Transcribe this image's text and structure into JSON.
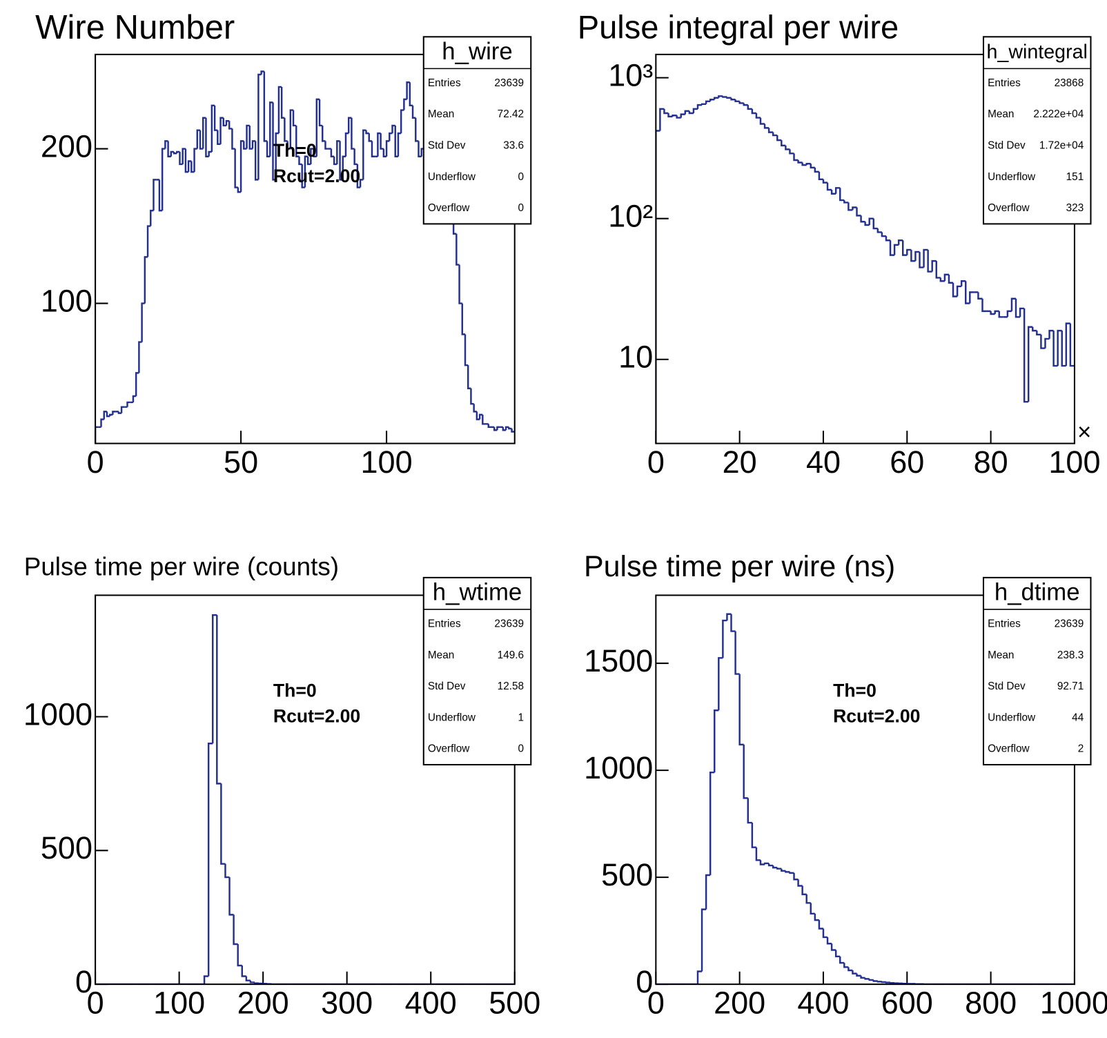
{
  "chart_data": [
    {
      "type": "histogram",
      "title": "Wire Number",
      "color": "#23308f",
      "log_y": false,
      "xlim": [
        0,
        144
      ],
      "ylim": [
        9.4,
        261
      ],
      "xticks": [
        0,
        50,
        100
      ],
      "yticks": [
        100,
        200
      ],
      "bins": [
        0,
        1,
        2,
        3,
        4,
        5,
        6,
        7,
        8,
        9,
        10,
        11,
        12,
        13,
        14,
        15,
        16,
        17,
        18,
        19,
        20,
        21,
        22,
        23,
        24,
        25,
        26,
        27,
        28,
        29,
        30,
        31,
        32,
        33,
        34,
        35,
        36,
        37,
        38,
        39,
        40,
        41,
        42,
        43,
        44,
        45,
        46,
        47,
        48,
        49,
        50,
        51,
        52,
        53,
        54,
        55,
        56,
        57,
        58,
        59,
        60,
        61,
        62,
        63,
        64,
        65,
        66,
        67,
        68,
        69,
        70,
        71,
        72,
        73,
        74,
        75,
        76,
        77,
        78,
        79,
        80,
        81,
        82,
        83,
        84,
        85,
        86,
        87,
        88,
        89,
        90,
        91,
        92,
        93,
        94,
        95,
        96,
        97,
        98,
        99,
        100,
        101,
        102,
        103,
        104,
        105,
        106,
        107,
        108,
        109,
        110,
        111,
        112,
        113,
        114,
        115,
        116,
        117,
        118,
        119,
        120,
        121,
        122,
        123,
        124,
        125,
        126,
        127,
        128,
        129,
        130,
        131,
        132,
        133,
        134,
        135,
        136,
        137,
        138,
        139,
        140,
        141,
        142,
        143,
        144
      ],
      "counts": [
        20,
        20,
        25,
        30,
        27,
        28,
        30,
        30,
        29,
        33,
        33,
        36,
        36,
        40,
        55,
        75,
        100,
        130,
        150,
        160,
        180,
        180,
        160,
        200,
        205,
        195,
        198,
        197,
        198,
        190,
        200,
        185,
        192,
        185,
        200,
        212,
        200,
        220,
        195,
        198,
        228,
        212,
        203,
        220,
        215,
        218,
        213,
        200,
        175,
        172,
        205,
        200,
        215,
        200,
        205,
        180,
        248,
        250,
        205,
        195,
        230,
        180,
        210,
        240,
        220,
        205,
        200,
        225,
        215,
        195,
        190,
        175,
        195,
        190,
        200,
        195,
        232,
        215,
        205,
        200,
        200,
        195,
        190,
        205,
        180,
        195,
        210,
        220,
        200,
        190,
        175,
        180,
        212,
        210,
        205,
        195,
        195,
        210,
        200,
        195,
        205,
        210,
        215,
        195,
        210,
        225,
        232,
        243,
        228,
        220,
        205,
        195,
        200,
        220,
        215,
        205,
        200,
        215,
        195,
        190,
        185,
        170,
        160,
        145,
        125,
        100,
        80,
        60,
        45,
        35,
        30,
        25,
        28,
        22,
        22,
        20,
        20,
        18,
        20,
        20,
        18,
        20,
        19,
        17
      ],
      "annotations": [
        "Th=0",
        "Rcut=2.00"
      ],
      "stats": {
        "name": "h_wire",
        "rows": [
          {
            "label": "Entries",
            "value": 23639
          },
          {
            "label": "Mean",
            "value": 72.42
          },
          {
            "label": "Std Dev",
            "value": 33.6
          },
          {
            "label": "Underflow",
            "value": 0
          },
          {
            "label": "Overflow",
            "value": 0
          }
        ]
      }
    },
    {
      "type": "histogram",
      "title": "Pulse integral per wire",
      "color": "#23308f",
      "log_y": true,
      "x_exponent": "×",
      "xlim": [
        0,
        100
      ],
      "ylim": [
        2.53,
        1463
      ],
      "xticks": [
        0,
        20,
        40,
        60,
        80,
        100
      ],
      "yticks": [
        {
          "value": 1000,
          "label": "10³"
        },
        {
          "value": 100,
          "label": "10²"
        },
        10
      ],
      "bins": [
        0,
        1,
        2,
        3,
        4,
        5,
        6,
        7,
        8,
        9,
        10,
        11,
        12,
        13,
        14,
        15,
        16,
        17,
        18,
        19,
        20,
        21,
        22,
        23,
        24,
        25,
        26,
        27,
        28,
        29,
        30,
        31,
        32,
        33,
        34,
        35,
        36,
        37,
        38,
        39,
        40,
        41,
        42,
        43,
        44,
        45,
        46,
        47,
        48,
        49,
        50,
        51,
        52,
        53,
        54,
        55,
        56,
        57,
        58,
        59,
        60,
        61,
        62,
        63,
        64,
        65,
        66,
        67,
        68,
        69,
        70,
        71,
        72,
        73,
        74,
        75,
        76,
        77,
        78,
        79,
        80,
        81,
        82,
        83,
        84,
        85,
        86,
        87,
        88,
        89,
        90,
        91,
        92,
        93,
        94,
        95,
        96,
        97,
        98,
        99,
        100
      ],
      "counts": [
        420,
        600,
        560,
        530,
        540,
        520,
        550,
        580,
        560,
        600,
        640,
        650,
        680,
        700,
        720,
        740,
        730,
        720,
        700,
        680,
        660,
        640,
        600,
        560,
        520,
        470,
        440,
        410,
        390,
        360,
        330,
        310,
        290,
        260,
        250,
        240,
        245,
        230,
        215,
        190,
        180,
        160,
        150,
        165,
        135,
        130,
        115,
        120,
        105,
        95,
        90,
        100,
        85,
        80,
        75,
        70,
        55,
        65,
        70,
        55,
        60,
        50,
        58,
        45,
        60,
        42,
        50,
        38,
        36,
        40,
        35,
        28,
        33,
        36,
        25,
        30,
        30,
        27,
        22,
        22,
        21,
        22,
        20,
        20,
        22,
        27,
        20,
        23,
        5,
        17,
        16,
        15,
        12,
        14,
        16,
        9,
        16,
        9,
        18,
        9
      ],
      "annotations": [],
      "stats": {
        "name": "h_wintegral",
        "rows": [
          {
            "label": "Entries",
            "value": 23868
          },
          {
            "label": "Mean",
            "value": "2.222e+04"
          },
          {
            "label": "Std Dev",
            "value": "1.72e+04"
          },
          {
            "label": "Underflow",
            "value": 151
          },
          {
            "label": "Overflow",
            "value": 323
          }
        ]
      }
    },
    {
      "type": "histogram",
      "title": "Pulse time per wire (counts)",
      "color": "#23308f",
      "log_y": false,
      "xlim": [
        0,
        500
      ],
      "ylim": [
        0,
        1454
      ],
      "xticks": [
        0,
        100,
        200,
        300,
        400,
        500
      ],
      "yticks": [
        0,
        500,
        1000
      ],
      "bins": [
        0,
        5,
        10,
        15,
        20,
        25,
        30,
        35,
        40,
        45,
        50,
        55,
        60,
        65,
        70,
        75,
        80,
        85,
        90,
        95,
        100,
        105,
        110,
        115,
        120,
        125,
        130,
        135,
        140,
        145,
        150,
        155,
        160,
        165,
        170,
        175,
        180,
        185,
        190,
        195,
        200,
        205,
        210,
        215,
        220,
        225,
        230,
        235,
        240,
        245,
        250,
        255,
        260,
        265,
        270,
        275,
        280,
        285,
        290,
        295,
        300,
        305,
        310,
        315,
        320,
        325,
        330,
        335,
        340,
        345,
        350,
        355,
        360,
        365,
        370,
        375,
        380,
        385,
        390,
        395,
        400,
        405,
        410,
        415,
        420,
        425,
        430,
        435,
        440,
        445,
        450,
        455,
        460,
        465,
        470,
        475,
        480,
        485,
        490,
        495,
        500
      ],
      "counts": [
        0,
        0,
        0,
        0,
        0,
        0,
        0,
        0,
        0,
        0,
        0,
        0,
        0,
        0,
        0,
        0,
        0,
        0,
        0,
        0,
        0,
        0,
        0,
        0,
        0,
        0,
        30,
        900,
        1380,
        750,
        450,
        400,
        260,
        150,
        70,
        30,
        14,
        7,
        4,
        3,
        2,
        1,
        0,
        0,
        0,
        0,
        0,
        0,
        0,
        0,
        0,
        0,
        0,
        0,
        0,
        0,
        0,
        0,
        0,
        0,
        0,
        0,
        0,
        0,
        0,
        0,
        0,
        0,
        0,
        0,
        0,
        0,
        0,
        0,
        0,
        0,
        0,
        0,
        0,
        0,
        0,
        0,
        0,
        0,
        0,
        0,
        0,
        0,
        0,
        0,
        0,
        0,
        0,
        0,
        0,
        0,
        0,
        0,
        0,
        0
      ],
      "annotations": [
        "Th=0",
        "Rcut=2.00"
      ],
      "stats": {
        "name": "h_wtime",
        "rows": [
          {
            "label": "Entries",
            "value": 23639
          },
          {
            "label": "Mean",
            "value": 149.6
          },
          {
            "label": "Std Dev",
            "value": 12.58
          },
          {
            "label": "Underflow",
            "value": 1
          },
          {
            "label": "Overflow",
            "value": 0
          }
        ]
      }
    },
    {
      "type": "histogram",
      "title": "Pulse time per wire (ns)",
      "color": "#23308f",
      "log_y": false,
      "xlim": [
        0,
        1000
      ],
      "ylim": [
        0,
        1818
      ],
      "xticks": [
        0,
        200,
        400,
        600,
        800,
        1000
      ],
      "yticks": [
        0,
        500,
        1000,
        1500
      ],
      "bins": [
        0,
        10,
        20,
        30,
        40,
        50,
        60,
        70,
        80,
        90,
        100,
        110,
        120,
        130,
        140,
        150,
        160,
        170,
        180,
        190,
        200,
        210,
        220,
        230,
        240,
        250,
        260,
        270,
        280,
        290,
        300,
        310,
        320,
        330,
        340,
        350,
        360,
        370,
        380,
        390,
        400,
        410,
        420,
        430,
        440,
        450,
        460,
        470,
        480,
        490,
        500,
        510,
        520,
        530,
        540,
        550,
        560,
        570,
        580,
        590,
        600,
        610,
        620,
        630,
        640,
        650,
        660,
        670,
        680,
        690,
        700,
        710,
        720,
        730,
        740,
        750,
        760,
        770,
        780,
        790,
        800,
        810,
        820,
        830,
        840,
        850,
        860,
        870,
        880,
        890,
        900,
        910,
        920,
        930,
        940,
        950,
        960,
        970,
        980,
        990,
        1000
      ],
      "counts": [
        0,
        0,
        0,
        0,
        0,
        0,
        0,
        0,
        0,
        0,
        60,
        350,
        510,
        990,
        1280,
        1525,
        1700,
        1730,
        1650,
        1450,
        1120,
        870,
        755,
        640,
        580,
        560,
        565,
        555,
        545,
        540,
        530,
        525,
        520,
        490,
        460,
        420,
        380,
        330,
        300,
        260,
        220,
        190,
        160,
        130,
        100,
        80,
        65,
        50,
        40,
        30,
        25,
        20,
        15,
        12,
        10,
        8,
        6,
        5,
        4,
        3,
        2,
        2,
        1,
        1,
        0,
        0,
        0,
        0,
        0,
        0,
        0,
        0,
        0,
        0,
        0,
        0,
        0,
        0,
        0,
        0,
        0,
        0,
        0,
        0,
        0,
        0,
        0,
        0,
        0,
        0,
        0,
        0,
        0,
        0,
        0,
        0,
        0,
        0,
        0,
        0
      ],
      "annotations": [
        "Th=0",
        "Rcut=2.00"
      ],
      "stats": {
        "name": "h_dtime",
        "rows": [
          {
            "label": "Entries",
            "value": 23639
          },
          {
            "label": "Mean",
            "value": 238.3
          },
          {
            "label": "Std Dev",
            "value": 92.71
          },
          {
            "label": "Underflow",
            "value": 44
          },
          {
            "label": "Overflow",
            "value": 2
          }
        ]
      }
    }
  ]
}
